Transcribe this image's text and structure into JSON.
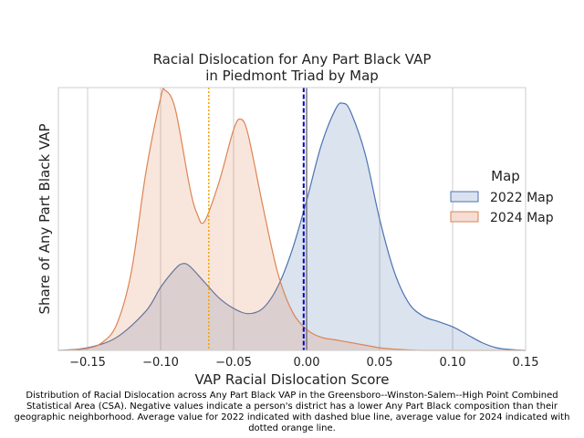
{
  "chart_data": {
    "type": "area",
    "title_lines": [
      "Racial Dislocation for Any Part Black VAP",
      "in Piedmont Triad by Map"
    ],
    "xlabel": "VAP Racial Dislocation Score",
    "ylabel": "Share of Any Part Black VAP",
    "xlim": [
      -0.17,
      0.15
    ],
    "ylim": [
      0,
      1.0
    ],
    "xticks": [
      -0.15,
      -0.1,
      -0.05,
      0.0,
      0.05,
      0.1,
      0.15
    ],
    "xtick_labels": [
      "−0.15",
      "−0.10",
      "−0.05",
      "0.00",
      "0.05",
      "0.10",
      "0.15"
    ],
    "grid": "vertical",
    "legend": {
      "title": "Map",
      "position": "right",
      "entries": [
        "2022 Map",
        "2024 Map"
      ]
    },
    "series": [
      {
        "name": "2022 Map",
        "color": "#4c72b0",
        "fill": "#dbe2ef",
        "mean": -0.002,
        "mean_line_style": "dashed",
        "mean_line_color": "#0000cc",
        "x": [
          -0.17,
          -0.15,
          -0.13,
          -0.11,
          -0.1,
          -0.09,
          -0.085,
          -0.08,
          -0.07,
          -0.06,
          -0.05,
          -0.04,
          -0.03,
          -0.02,
          -0.01,
          0.0,
          0.01,
          0.02,
          0.025,
          0.03,
          0.04,
          0.05,
          0.06,
          0.07,
          0.08,
          0.09,
          0.1,
          0.11,
          0.12,
          0.13,
          0.14,
          0.15
        ],
        "y": [
          0.0,
          0.01,
          0.05,
          0.15,
          0.24,
          0.31,
          0.33,
          0.32,
          0.26,
          0.2,
          0.16,
          0.14,
          0.16,
          0.24,
          0.38,
          0.57,
          0.78,
          0.92,
          0.94,
          0.91,
          0.75,
          0.5,
          0.3,
          0.18,
          0.13,
          0.11,
          0.09,
          0.06,
          0.03,
          0.01,
          0.003,
          0.0
        ]
      },
      {
        "name": "2024 Map",
        "color": "#dd8452",
        "fill": "#f4ddd4",
        "mean": -0.067,
        "mean_line_style": "dotted",
        "mean_line_color": "#f5a300",
        "x": [
          -0.17,
          -0.16,
          -0.15,
          -0.14,
          -0.13,
          -0.12,
          -0.11,
          -0.1,
          -0.097,
          -0.09,
          -0.08,
          -0.075,
          -0.07,
          -0.06,
          -0.05,
          -0.045,
          -0.04,
          -0.03,
          -0.02,
          -0.01,
          0.0,
          0.01,
          0.02,
          0.03,
          0.04,
          0.05,
          0.06,
          0.07,
          0.08,
          0.1,
          0.15
        ],
        "y": [
          0.0,
          0.002,
          0.008,
          0.03,
          0.1,
          0.3,
          0.68,
          0.96,
          0.99,
          0.92,
          0.62,
          0.52,
          0.49,
          0.64,
          0.84,
          0.88,
          0.82,
          0.55,
          0.3,
          0.15,
          0.08,
          0.05,
          0.04,
          0.03,
          0.02,
          0.01,
          0.005,
          0.002,
          0.0,
          0.0,
          0.0
        ]
      }
    ],
    "reference_line": {
      "x": 0.0,
      "color": "#777777"
    }
  },
  "caption": "Distribution of Racial Dislocation across Any Part Black VAP in the Greensboro--Winston-Salem--High Point Combined Statistical Area (CSA). Negative values indicate a person's district has a lower Any Part Black composition than their geographic neighborhood. Average value for 2022 indicated with dashed blue line, average value for 2024 indicated with dotted orange line."
}
